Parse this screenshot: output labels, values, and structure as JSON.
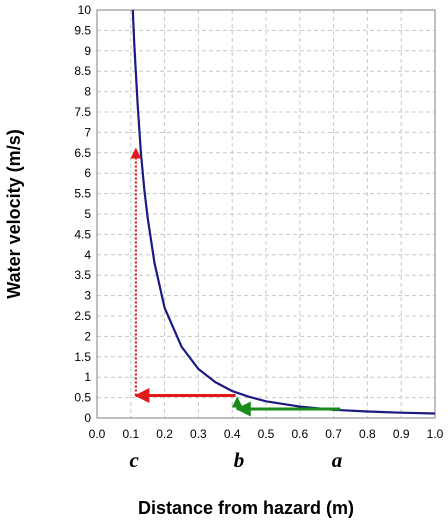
{
  "chart_data": {
    "type": "line",
    "title": "",
    "xlabel": "Distance from hazard (m)",
    "ylabel": "Water velocity (m/s)",
    "xlim": [
      0.0,
      1.0
    ],
    "ylim": [
      0,
      10
    ],
    "x_ticks": [
      "0.0",
      "0.1",
      "0.2",
      "0.3",
      "0.4",
      "0.5",
      "0.6",
      "0.7",
      "0.8",
      "0.9",
      "1.0"
    ],
    "y_ticks": [
      "0",
      "0.5",
      "1",
      "1.5",
      "2",
      "2.5",
      "3",
      "3.5",
      "4",
      "4.5",
      "5",
      "5.5",
      "6",
      "6.5",
      "7",
      "7.5",
      "8",
      "8.5",
      "9",
      "9.5",
      "10"
    ],
    "grid": true,
    "series": [
      {
        "color": "#1a1a80",
        "x": [
          0.106,
          0.11,
          0.12,
          0.13,
          0.14,
          0.15,
          0.17,
          0.2,
          0.25,
          0.3,
          0.35,
          0.4,
          0.45,
          0.5,
          0.6,
          0.7,
          0.8,
          0.9,
          1.0
        ],
        "y": [
          10.0,
          9.2,
          7.7,
          6.5,
          5.6,
          4.9,
          3.8,
          2.7,
          1.75,
          1.2,
          0.88,
          0.66,
          0.52,
          0.41,
          0.28,
          0.2,
          0.16,
          0.13,
          0.11
        ]
      }
    ],
    "annotations": {
      "point_labels": [
        {
          "text": "c",
          "x": 0.11
        },
        {
          "text": "b",
          "x": 0.42
        },
        {
          "text": "a",
          "x": 0.71
        }
      ],
      "arrows": [
        {
          "color": "#1a8a1a",
          "style": "solid",
          "from": [
            0.72,
            0.22
          ],
          "to": [
            0.415,
            0.22
          ]
        },
        {
          "color": "#1a8a1a",
          "style": "dotted",
          "from": [
            0.415,
            0.22
          ],
          "to": [
            0.415,
            0.5
          ]
        },
        {
          "color": "#e01a1a",
          "style": "solid",
          "from": [
            0.41,
            0.55
          ],
          "to": [
            0.115,
            0.55
          ]
        },
        {
          "color": "#e01a1a",
          "style": "dotted",
          "from": [
            0.115,
            0.55
          ],
          "to": [
            0.115,
            6.6
          ]
        }
      ]
    }
  }
}
